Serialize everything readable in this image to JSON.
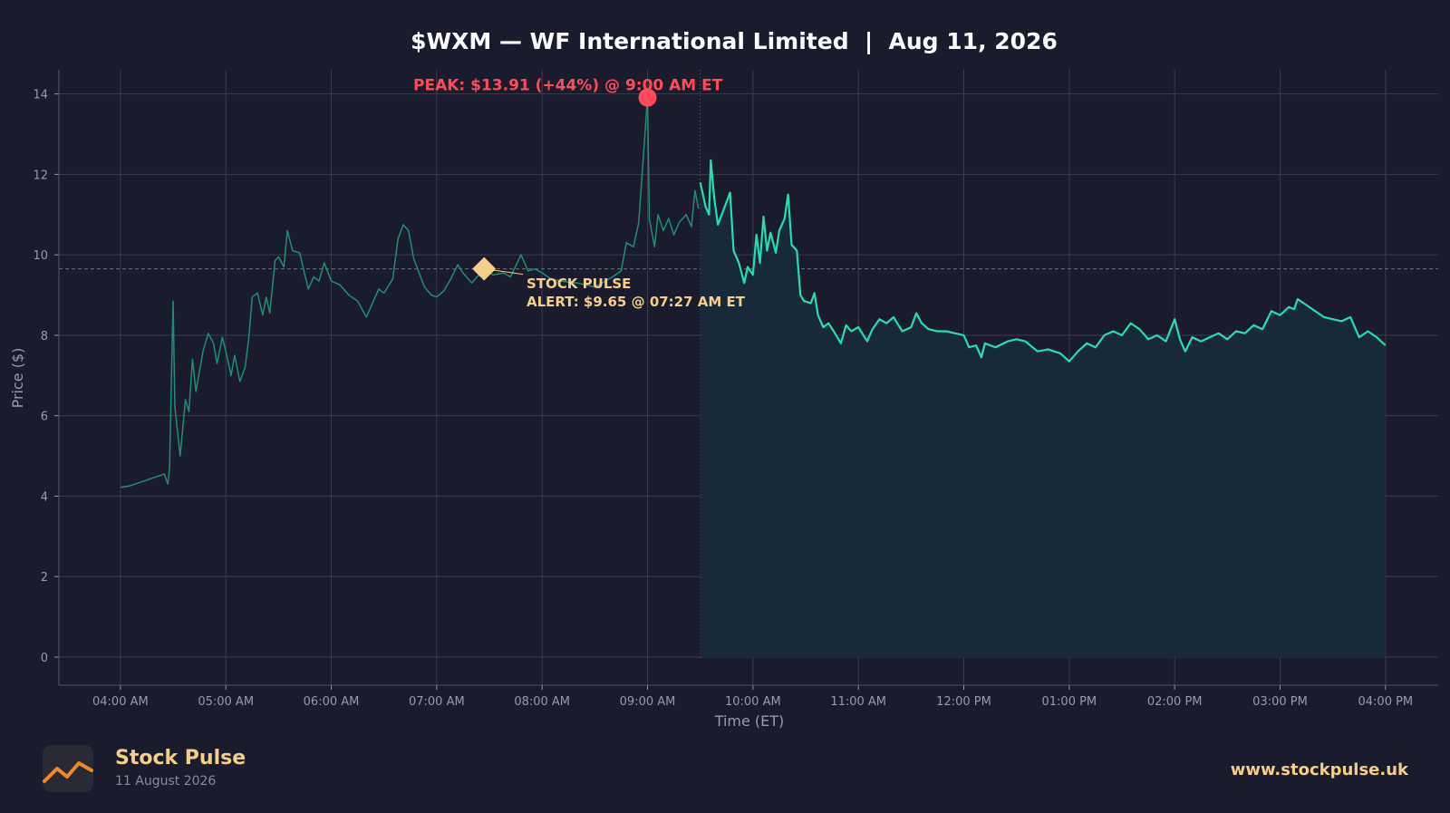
{
  "chart_data": {
    "type": "line",
    "title": "$WXM — WF International Limited  |  Aug 11, 2026",
    "xlabel": "Time (ET)",
    "ylabel": "Price ($)",
    "x_range": [
      "03:25 AM",
      "04:30 PM"
    ],
    "ylim": [
      -0.7,
      14.6
    ],
    "y_ticks": [
      0,
      2,
      4,
      6,
      8,
      10,
      12,
      14
    ],
    "x_ticks": [
      "04:00 AM",
      "05:00 AM",
      "06:00 AM",
      "07:00 AM",
      "08:00 AM",
      "09:00 AM",
      "10:00 AM",
      "11:00 AM",
      "12:00 PM",
      "01:00 PM",
      "02:00 PM",
      "03:00 PM",
      "04:00 PM"
    ],
    "grid": true,
    "market_open": "09:30 AM",
    "series": [
      {
        "segment": "premarket",
        "points": [
          [
            "04:00 AM",
            4.22
          ],
          [
            "04:05 AM",
            4.25
          ],
          [
            "04:15 AM",
            4.4
          ],
          [
            "04:25 AM",
            4.55
          ],
          [
            "04:27 AM",
            4.3
          ],
          [
            "04:28 AM",
            4.7
          ],
          [
            "04:30 AM",
            8.85
          ],
          [
            "04:31 AM",
            6.2
          ],
          [
            "04:34 AM",
            5.0
          ],
          [
            "04:37 AM",
            6.4
          ],
          [
            "04:39 AM",
            6.1
          ],
          [
            "04:41 AM",
            7.4
          ],
          [
            "04:43 AM",
            6.6
          ],
          [
            "04:45 AM",
            7.1
          ],
          [
            "04:47 AM",
            7.6
          ],
          [
            "04:50 AM",
            8.05
          ],
          [
            "04:53 AM",
            7.8
          ],
          [
            "04:55 AM",
            7.3
          ],
          [
            "04:58 AM",
            7.95
          ],
          [
            "05:00 AM",
            7.6
          ],
          [
            "05:03 AM",
            7.0
          ],
          [
            "05:05 AM",
            7.5
          ],
          [
            "05:08 AM",
            6.85
          ],
          [
            "05:11 AM",
            7.2
          ],
          [
            "05:13 AM",
            7.9
          ],
          [
            "05:15 AM",
            8.95
          ],
          [
            "05:18 AM",
            9.05
          ],
          [
            "05:21 AM",
            8.5
          ],
          [
            "05:23 AM",
            8.95
          ],
          [
            "05:25 AM",
            8.55
          ],
          [
            "05:28 AM",
            9.85
          ],
          [
            "05:30 AM",
            9.95
          ],
          [
            "05:33 AM",
            9.7
          ],
          [
            "05:35 AM",
            10.6
          ],
          [
            "05:38 AM",
            10.1
          ],
          [
            "05:42 AM",
            10.05
          ],
          [
            "05:45 AM",
            9.5
          ],
          [
            "05:47 AM",
            9.15
          ],
          [
            "05:50 AM",
            9.45
          ],
          [
            "05:53 AM",
            9.35
          ],
          [
            "05:56 AM",
            9.8
          ],
          [
            "06:00 AM",
            9.35
          ],
          [
            "06:05 AM",
            9.25
          ],
          [
            "06:10 AM",
            9.0
          ],
          [
            "06:15 AM",
            8.85
          ],
          [
            "06:20 AM",
            8.45
          ],
          [
            "06:23 AM",
            8.75
          ],
          [
            "06:27 AM",
            9.15
          ],
          [
            "06:30 AM",
            9.05
          ],
          [
            "06:35 AM",
            9.4
          ],
          [
            "06:38 AM",
            10.4
          ],
          [
            "06:41 AM",
            10.75
          ],
          [
            "06:44 AM",
            10.6
          ],
          [
            "06:47 AM",
            9.9
          ],
          [
            "06:50 AM",
            9.55
          ],
          [
            "06:53 AM",
            9.2
          ],
          [
            "06:57 AM",
            9.0
          ],
          [
            "07:00 AM",
            8.95
          ],
          [
            "07:04 AM",
            9.1
          ],
          [
            "07:08 AM",
            9.4
          ],
          [
            "07:12 AM",
            9.75
          ],
          [
            "07:15 AM",
            9.55
          ],
          [
            "07:20 AM",
            9.3
          ],
          [
            "07:27 AM",
            9.65
          ],
          [
            "07:32 AM",
            9.5
          ],
          [
            "07:38 AM",
            9.55
          ],
          [
            "07:42 AM",
            9.45
          ],
          [
            "07:48 AM",
            10.0
          ],
          [
            "07:52 AM",
            9.6
          ],
          [
            "07:56 AM",
            9.65
          ],
          [
            "08:00 AM",
            9.55
          ],
          [
            "08:05 AM",
            9.4
          ],
          [
            "08:10 AM",
            9.35
          ],
          [
            "08:20 AM",
            9.3
          ],
          [
            "08:30 AM",
            9.2
          ],
          [
            "08:40 AM",
            9.45
          ],
          [
            "08:45 AM",
            9.6
          ],
          [
            "08:48 AM",
            10.3
          ],
          [
            "08:52 AM",
            10.2
          ],
          [
            "08:55 AM",
            10.8
          ],
          [
            "09:00 AM",
            13.91
          ],
          [
            "09:01 AM",
            10.9
          ],
          [
            "09:04 AM",
            10.2
          ],
          [
            "09:06 AM",
            11.0
          ],
          [
            "09:09 AM",
            10.6
          ],
          [
            "09:12 AM",
            10.9
          ],
          [
            "09:15 AM",
            10.5
          ],
          [
            "09:18 AM",
            10.8
          ],
          [
            "09:22 AM",
            11.0
          ],
          [
            "09:25 AM",
            10.7
          ],
          [
            "09:27 AM",
            11.6
          ],
          [
            "09:29 AM",
            11.15
          ]
        ]
      },
      {
        "segment": "regular",
        "points": [
          [
            "09:30 AM",
            11.8
          ],
          [
            "09:33 AM",
            11.2
          ],
          [
            "09:35 AM",
            11.0
          ],
          [
            "09:36 AM",
            12.35
          ],
          [
            "09:38 AM",
            11.4
          ],
          [
            "09:40 AM",
            10.75
          ],
          [
            "09:44 AM",
            11.2
          ],
          [
            "09:47 AM",
            11.55
          ],
          [
            "09:49 AM",
            10.1
          ],
          [
            "09:52 AM",
            9.8
          ],
          [
            "09:55 AM",
            9.3
          ],
          [
            "09:57 AM",
            9.7
          ],
          [
            "10:00 AM",
            9.5
          ],
          [
            "10:02 AM",
            10.5
          ],
          [
            "10:04 AM",
            9.8
          ],
          [
            "10:06 AM",
            10.95
          ],
          [
            "10:08 AM",
            10.1
          ],
          [
            "10:10 AM",
            10.55
          ],
          [
            "10:13 AM",
            10.05
          ],
          [
            "10:15 AM",
            10.6
          ],
          [
            "10:18 AM",
            10.9
          ],
          [
            "10:20 AM",
            11.5
          ],
          [
            "10:22 AM",
            10.25
          ],
          [
            "10:25 AM",
            10.1
          ],
          [
            "10:27 AM",
            9.0
          ],
          [
            "10:29 AM",
            8.85
          ],
          [
            "10:33 AM",
            8.8
          ],
          [
            "10:35 AM",
            9.05
          ],
          [
            "10:37 AM",
            8.5
          ],
          [
            "10:40 AM",
            8.2
          ],
          [
            "10:43 AM",
            8.3
          ],
          [
            "10:46 AM",
            8.1
          ],
          [
            "10:50 AM",
            7.8
          ],
          [
            "10:53 AM",
            8.25
          ],
          [
            "10:56 AM",
            8.1
          ],
          [
            "11:00 AM",
            8.2
          ],
          [
            "11:05 AM",
            7.85
          ],
          [
            "11:08 AM",
            8.15
          ],
          [
            "11:12 AM",
            8.4
          ],
          [
            "11:16 AM",
            8.3
          ],
          [
            "11:20 AM",
            8.45
          ],
          [
            "11:25 AM",
            8.1
          ],
          [
            "11:30 AM",
            8.2
          ],
          [
            "11:33 AM",
            8.55
          ],
          [
            "11:36 AM",
            8.3
          ],
          [
            "11:40 AM",
            8.15
          ],
          [
            "11:45 AM",
            8.1
          ],
          [
            "11:50 AM",
            8.1
          ],
          [
            "11:55 AM",
            8.05
          ],
          [
            "12:00 PM",
            8.0
          ],
          [
            "12:03 PM",
            7.7
          ],
          [
            "12:07 PM",
            7.75
          ],
          [
            "12:10 PM",
            7.45
          ],
          [
            "12:12 PM",
            7.8
          ],
          [
            "12:18 PM",
            7.7
          ],
          [
            "12:25 PM",
            7.85
          ],
          [
            "12:30 PM",
            7.9
          ],
          [
            "12:35 PM",
            7.85
          ],
          [
            "12:42 PM",
            7.6
          ],
          [
            "12:48 PM",
            7.65
          ],
          [
            "12:55 PM",
            7.55
          ],
          [
            "01:00 PM",
            7.35
          ],
          [
            "01:05 PM",
            7.6
          ],
          [
            "01:10 PM",
            7.8
          ],
          [
            "01:15 PM",
            7.7
          ],
          [
            "01:20 PM",
            8.0
          ],
          [
            "01:25 PM",
            8.1
          ],
          [
            "01:30 PM",
            8.0
          ],
          [
            "01:35 PM",
            8.3
          ],
          [
            "01:40 PM",
            8.15
          ],
          [
            "01:45 PM",
            7.9
          ],
          [
            "01:50 PM",
            8.0
          ],
          [
            "01:55 PM",
            7.85
          ],
          [
            "02:00 PM",
            8.4
          ],
          [
            "02:03 PM",
            7.9
          ],
          [
            "02:06 PM",
            7.6
          ],
          [
            "02:10 PM",
            7.95
          ],
          [
            "02:15 PM",
            7.85
          ],
          [
            "02:20 PM",
            7.95
          ],
          [
            "02:25 PM",
            8.05
          ],
          [
            "02:30 PM",
            7.9
          ],
          [
            "02:35 PM",
            8.1
          ],
          [
            "02:40 PM",
            8.05
          ],
          [
            "02:45 PM",
            8.25
          ],
          [
            "02:50 PM",
            8.15
          ],
          [
            "02:55 PM",
            8.6
          ],
          [
            "03:00 PM",
            8.5
          ],
          [
            "03:05 PM",
            8.7
          ],
          [
            "03:08 PM",
            8.65
          ],
          [
            "03:10 PM",
            8.9
          ],
          [
            "03:15 PM",
            8.75
          ],
          [
            "03:20 PM",
            8.6
          ],
          [
            "03:25 PM",
            8.45
          ],
          [
            "03:30 PM",
            8.4
          ],
          [
            "03:35 PM",
            8.35
          ],
          [
            "03:40 PM",
            8.45
          ],
          [
            "03:45 PM",
            7.95
          ],
          [
            "03:50 PM",
            8.1
          ],
          [
            "03:55 PM",
            7.95
          ],
          [
            "04:00 PM",
            7.75
          ]
        ]
      }
    ],
    "reference_line": {
      "value": 9.65,
      "style": "dashed"
    },
    "annotations": [
      {
        "type": "peak",
        "x": "09:00 AM",
        "y": 13.91,
        "text": "PEAK: $13.91 (+44%) @ 9:00 AM ET"
      },
      {
        "type": "alert",
        "x": "07:27 AM",
        "y": 9.65,
        "text_line1": "STOCK PULSE",
        "text_line2": "ALERT: $9.65 @ 07:27 AM ET"
      }
    ],
    "colors": {
      "background": "#1b1b2e",
      "premarket_line": "#1f8f74",
      "regular_line": "#20e0b0",
      "fill": "#18293a",
      "peak": "#ff4a5a",
      "alert": "#f5cf87",
      "grid": "#3c3c4e",
      "text": "#9a9aa8",
      "title": "#ffffff"
    }
  },
  "footer": {
    "brand": "Stock Pulse",
    "date": "11 August 2026",
    "url": "www.stockpulse.uk",
    "logo_icon": "trend-line-icon"
  }
}
